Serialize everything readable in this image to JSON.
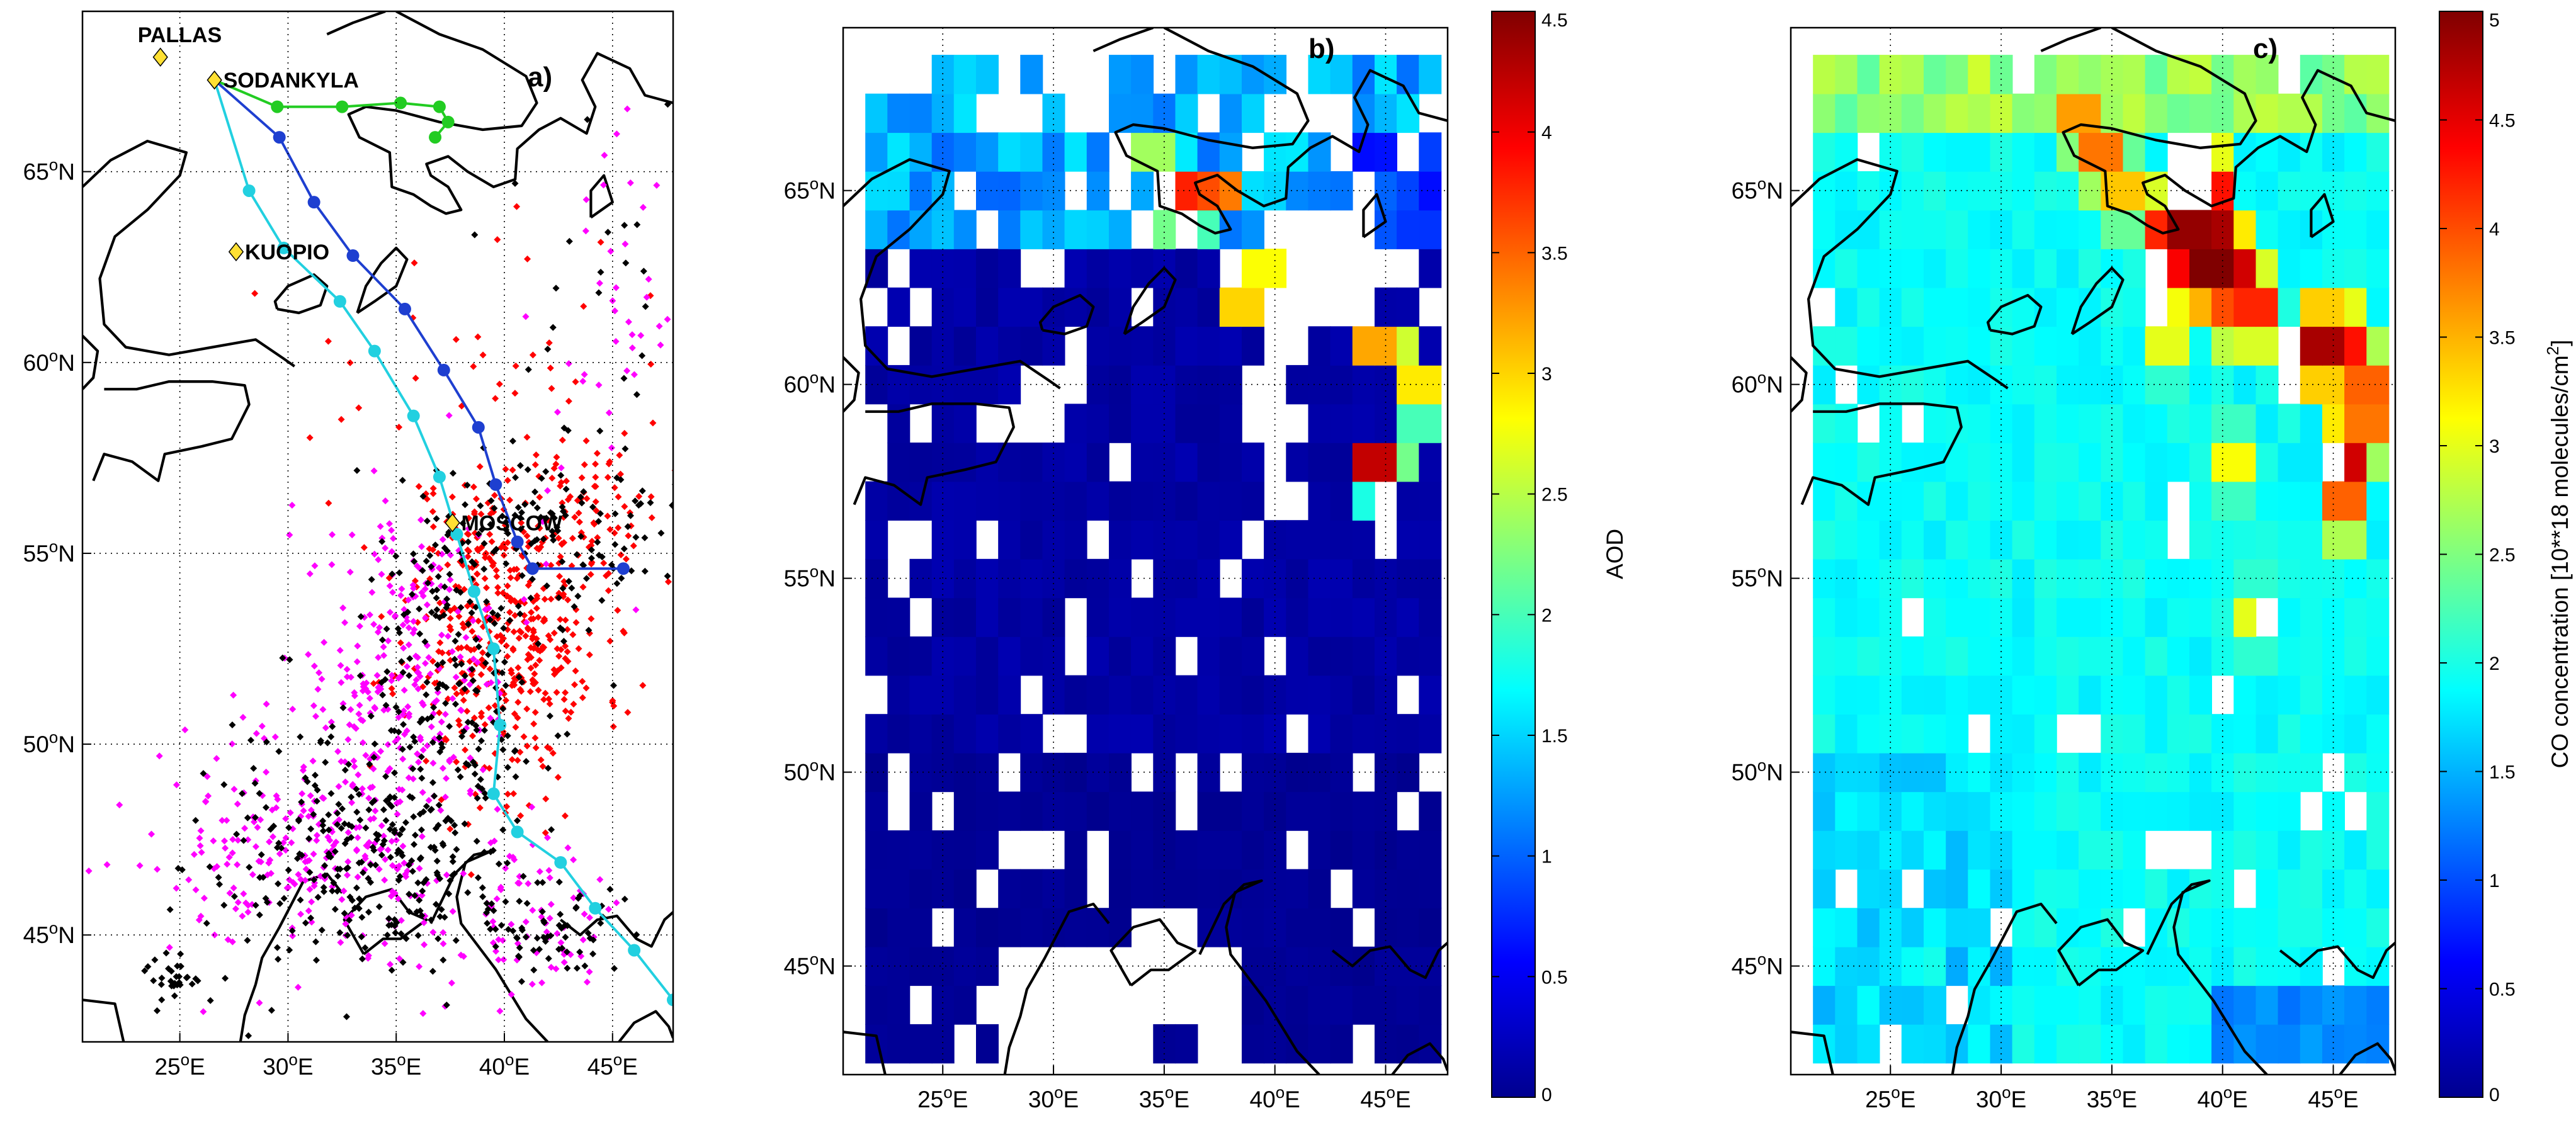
{
  "chart_data": [
    {
      "panel": "a)",
      "type": "scatter",
      "xticks": [
        "25",
        "30",
        "35",
        "40",
        "45"
      ],
      "yticks": [
        "45",
        "50",
        "55",
        "60",
        "65"
      ],
      "tick_suffix": {
        "x": "E",
        "y": "N"
      },
      "xlim": [
        20.5,
        47.8
      ],
      "ylim": [
        42.2,
        69.2
      ],
      "grid": true,
      "stations": [
        {
          "name": "PALLAS",
          "lon": 24.1,
          "lat": 68.0
        },
        {
          "name": "SODANKYLA",
          "lon": 26.6,
          "lat": 67.4
        },
        {
          "name": "KUOPIO",
          "lon": 27.6,
          "lat": 62.9
        },
        {
          "name": "MOSCOW",
          "lon": 37.6,
          "lat": 55.8
        }
      ],
      "trajectories": [
        {
          "color": "#22cc22",
          "points": [
            [
              26.6,
              67.4
            ],
            [
              29.5,
              66.7
            ],
            [
              32.5,
              66.7
            ],
            [
              35.2,
              66.8
            ],
            [
              37.0,
              66.7
            ],
            [
              37.4,
              66.3
            ],
            [
              36.8,
              65.9
            ]
          ]
        },
        {
          "color": "#1e3fd0",
          "points": [
            [
              26.6,
              67.4
            ],
            [
              29.6,
              65.9
            ],
            [
              31.2,
              64.2
            ],
            [
              33.0,
              62.8
            ],
            [
              35.4,
              61.4
            ],
            [
              37.2,
              59.8
            ],
            [
              38.8,
              58.3
            ],
            [
              39.6,
              56.8
            ],
            [
              40.6,
              55.3
            ],
            [
              41.3,
              54.6
            ],
            [
              45.5,
              54.6
            ]
          ]
        },
        {
          "color": "#22d0e0",
          "points": [
            [
              26.6,
              67.4
            ],
            [
              28.2,
              64.5
            ],
            [
              29.8,
              63.0
            ],
            [
              32.4,
              61.6
            ],
            [
              34.0,
              60.3
            ],
            [
              35.8,
              58.6
            ],
            [
              37.0,
              57.0
            ],
            [
              37.8,
              55.5
            ],
            [
              38.6,
              54.0
            ],
            [
              39.5,
              52.5
            ],
            [
              39.8,
              50.5
            ],
            [
              39.5,
              48.7
            ],
            [
              40.6,
              47.7
            ],
            [
              42.6,
              46.9
            ],
            [
              44.2,
              45.7
            ],
            [
              46.0,
              44.6
            ],
            [
              47.8,
              43.3
            ]
          ]
        }
      ],
      "fire_clusters": [
        {
          "color": "#ff0000",
          "count": 450,
          "cx": 40.0,
          "cy": 53.2,
          "sx": 2.3,
          "sy": 2.2,
          "seed": 11
        },
        {
          "color": "#ff0000",
          "count": 60,
          "cx": 44.5,
          "cy": 56.0,
          "sx": 1.6,
          "sy": 1.0,
          "seed": 12
        },
        {
          "color": "#ff0000",
          "count": 40,
          "cx": 40.0,
          "cy": 59.5,
          "sx": 5.0,
          "sy": 2.2,
          "seed": 13
        },
        {
          "color": "#ff00ff",
          "count": 240,
          "cx": 35.5,
          "cy": 52.0,
          "sx": 2.6,
          "sy": 2.0,
          "seed": 21
        },
        {
          "color": "#ff00ff",
          "count": 280,
          "cx": 31.5,
          "cy": 47.2,
          "sx": 3.6,
          "sy": 1.5,
          "seed": 22
        },
        {
          "color": "#ff00ff",
          "count": 70,
          "cx": 41.5,
          "cy": 45.3,
          "sx": 1.6,
          "sy": 0.9,
          "seed": 23
        },
        {
          "color": "#ff00ff",
          "count": 45,
          "cx": 45.0,
          "cy": 60.5,
          "sx": 2.0,
          "sy": 3.0,
          "seed": 24
        },
        {
          "color": "#000000",
          "count": 300,
          "cx": 33.5,
          "cy": 47.0,
          "sx": 4.0,
          "sy": 1.6,
          "seed": 31
        },
        {
          "color": "#000000",
          "count": 190,
          "cx": 37.5,
          "cy": 52.3,
          "sx": 2.8,
          "sy": 2.4,
          "seed": 32
        },
        {
          "color": "#000000",
          "count": 110,
          "cx": 42.0,
          "cy": 55.4,
          "sx": 3.0,
          "sy": 0.9,
          "seed": 33
        },
        {
          "color": "#000000",
          "count": 50,
          "cx": 42.5,
          "cy": 45.0,
          "sx": 1.5,
          "sy": 0.8,
          "seed": 34
        },
        {
          "color": "#000000",
          "count": 30,
          "cx": 24.8,
          "cy": 43.9,
          "sx": 0.8,
          "sy": 0.4,
          "seed": 35
        },
        {
          "color": "#000000",
          "count": 30,
          "cx": 44.5,
          "cy": 61.0,
          "sx": 2.5,
          "sy": 3.0,
          "seed": 36
        }
      ]
    },
    {
      "panel": "b)",
      "type": "heatmap",
      "xticks": [
        "25",
        "30",
        "35",
        "40",
        "45"
      ],
      "yticks": [
        "45",
        "50",
        "55",
        "60",
        "65"
      ],
      "tick_suffix": {
        "x": "E",
        "y": "N"
      },
      "xlim": [
        20.5,
        47.8
      ],
      "ylim": [
        42.2,
        69.2
      ],
      "cell_deg": 1.0,
      "grid_origin": [
        21.5,
        42.5
      ],
      "colorbar": {
        "label": "AOD",
        "min": 0,
        "max": 4.5,
        "ticks": [
          "0",
          "0.5",
          "1",
          "1.5",
          "2",
          "2.5",
          "3",
          "3.5",
          "4",
          "4.5"
        ]
      },
      "field_rows_south_to_north": [
        "______________________________________",
        "11111__________________________________",
        "11111______________________________",
        "1111111111__1111111111111111111111",
        "11111111111111111111111111",
        "11111111111111111111111111",
        "11111111111111111111111111",
        "11111111111111111111111111",
        "11111111111111111111111111",
        "11111111111111111111111111",
        "11111111111111111111111111",
        "11111111111111111111111111",
        "11111111111111111111111111",
        "11111111111111111111111111",
        "11111111111111111111111111",
        "11111111111111111111111111",
        "11111111111111111111111111",
        "11111111111111111111111111",
        "11111111111111111111111111",
        "11111111111111111111111111",
        "11111111111111111111111111",
        "11111111111111111111111111",
        "11111111111111111111111111",
        "11111111111111111111111111",
        "11111111111111111111111111",
        "11111111111111111111111111",
        "11111111111111111111111111"
      ],
      "base_value": 0.1,
      "hotspots": [
        {
          "lon": 35.5,
          "lat": 65.0,
          "v": 3.8
        },
        {
          "lon": 36.5,
          "lat": 65.0,
          "v": 3.6
        },
        {
          "lon": 37.5,
          "lat": 65.0,
          "v": 3.4
        },
        {
          "lon": 35.5,
          "lat": 64.0,
          "v": 2.2
        },
        {
          "lon": 36.5,
          "lat": 64.0,
          "v": 2.0
        },
        {
          "lon": 34.5,
          "lat": 66.0,
          "v": 2.4
        },
        {
          "lon": 35.5,
          "lat": 66.0,
          "v": 1.6
        },
        {
          "lon": 39.5,
          "lat": 63.0,
          "v": 2.8
        },
        {
          "lon": 40.5,
          "lat": 63.0,
          "v": 1.8
        },
        {
          "lon": 38.5,
          "lat": 62.0,
          "v": 3.0
        },
        {
          "lon": 42.5,
          "lat": 62.0,
          "v": 4.0
        },
        {
          "lon": 43.5,
          "lat": 62.0,
          "v": 2.0
        },
        {
          "lon": 44.5,
          "lat": 61.0,
          "v": 3.2
        },
        {
          "lon": 45.5,
          "lat": 61.0,
          "v": 2.6
        },
        {
          "lon": 46.5,
          "lat": 60.0,
          "v": 2.9
        },
        {
          "lon": 44.5,
          "lat": 58.0,
          "v": 4.2
        },
        {
          "lon": 45.5,
          "lat": 58.0,
          "v": 2.2
        },
        {
          "lon": 46.5,
          "lat": 59.0,
          "v": 2.0
        },
        {
          "lon": 44.5,
          "lat": 57.0,
          "v": 1.8
        }
      ],
      "top_band": {
        "lat_min": 63.5,
        "value": 1.3
      },
      "mask_seed": 7,
      "mask_fraction": 0.14
    },
    {
      "panel": "c)",
      "type": "heatmap",
      "xticks": [
        "25",
        "30",
        "35",
        "40",
        "45"
      ],
      "yticks": [
        "45",
        "50",
        "55",
        "60",
        "65"
      ],
      "tick_suffix": {
        "x": "E",
        "y": "N"
      },
      "xlim": [
        20.5,
        47.8
      ],
      "ylim": [
        42.2,
        69.2
      ],
      "cell_deg": 1.0,
      "grid_origin": [
        21.5,
        42.5
      ],
      "colorbar": {
        "label_prefix": "CO concentration [10**18 molecules/cm",
        "label_sup": "2",
        "label_suffix": "]",
        "min": 0,
        "max": 5,
        "ticks": [
          "0",
          "0.5",
          "1",
          "1.5",
          "2",
          "2.5",
          "3",
          "3.5",
          "4",
          "4.5",
          "5"
        ]
      },
      "base_value": 1.9,
      "hotspots": [
        {
          "lon": 38.5,
          "lat": 64.0,
          "v": 4.9
        },
        {
          "lon": 39.5,
          "lat": 64.0,
          "v": 4.8
        },
        {
          "lon": 37.5,
          "lat": 64.0,
          "v": 4.2
        },
        {
          "lon": 39.5,
          "lat": 63.0,
          "v": 5.0
        },
        {
          "lon": 38.5,
          "lat": 63.0,
          "v": 4.4
        },
        {
          "lon": 40.5,
          "lat": 63.0,
          "v": 4.6
        },
        {
          "lon": 41.5,
          "lat": 62.0,
          "v": 4.2
        },
        {
          "lon": 40.5,
          "lat": 62.0,
          "v": 4.0
        },
        {
          "lon": 39.5,
          "lat": 65.0,
          "v": 4.3
        },
        {
          "lon": 44.5,
          "lat": 61.0,
          "v": 4.8
        },
        {
          "lon": 45.5,
          "lat": 61.0,
          "v": 4.3
        },
        {
          "lon": 45.5,
          "lat": 58.0,
          "v": 4.6
        },
        {
          "lon": 45.5,
          "lat": 57.0,
          "v": 3.9
        },
        {
          "lon": 46.5,
          "lat": 59.0,
          "v": 3.8
        },
        {
          "lon": 46.5,
          "lat": 60.0,
          "v": 3.9
        },
        {
          "lon": 34.5,
          "lat": 66.0,
          "v": 3.8
        },
        {
          "lon": 33.5,
          "lat": 67.0,
          "v": 3.6
        },
        {
          "lon": 35.5,
          "lat": 65.0,
          "v": 3.4
        },
        {
          "lon": 37.5,
          "lat": 61.0,
          "v": 3.0
        },
        {
          "lon": 40.5,
          "lat": 58.0,
          "v": 3.1
        },
        {
          "lon": 41.5,
          "lat": 54.0,
          "v": 3.0
        }
      ],
      "top_band": {
        "lat_min": 66.5,
        "value": 2.6
      },
      "mask_seed": 9,
      "mask_fraction": 0.05
    }
  ]
}
